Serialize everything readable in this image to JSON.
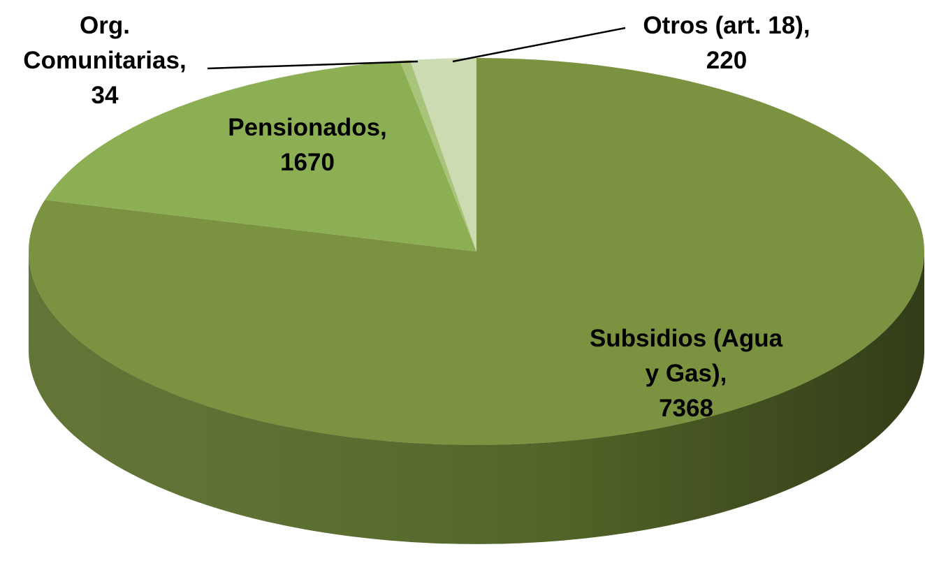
{
  "chart_data": {
    "type": "pie",
    "categories": [
      "Subsidios (Agua y Gas),",
      "Pensionados,",
      "Org. Comunitarias,",
      "Otros (art. 18),"
    ],
    "values": [
      7368,
      1670,
      34,
      220
    ],
    "colors": [
      "#7b9341",
      "#8daf53",
      "#a9c47a",
      "#ccdbb2"
    ],
    "side_colors": [
      "#5a6e2c",
      "#6d8a3c",
      "#8aa25e",
      "#aabb90"
    ]
  }
}
